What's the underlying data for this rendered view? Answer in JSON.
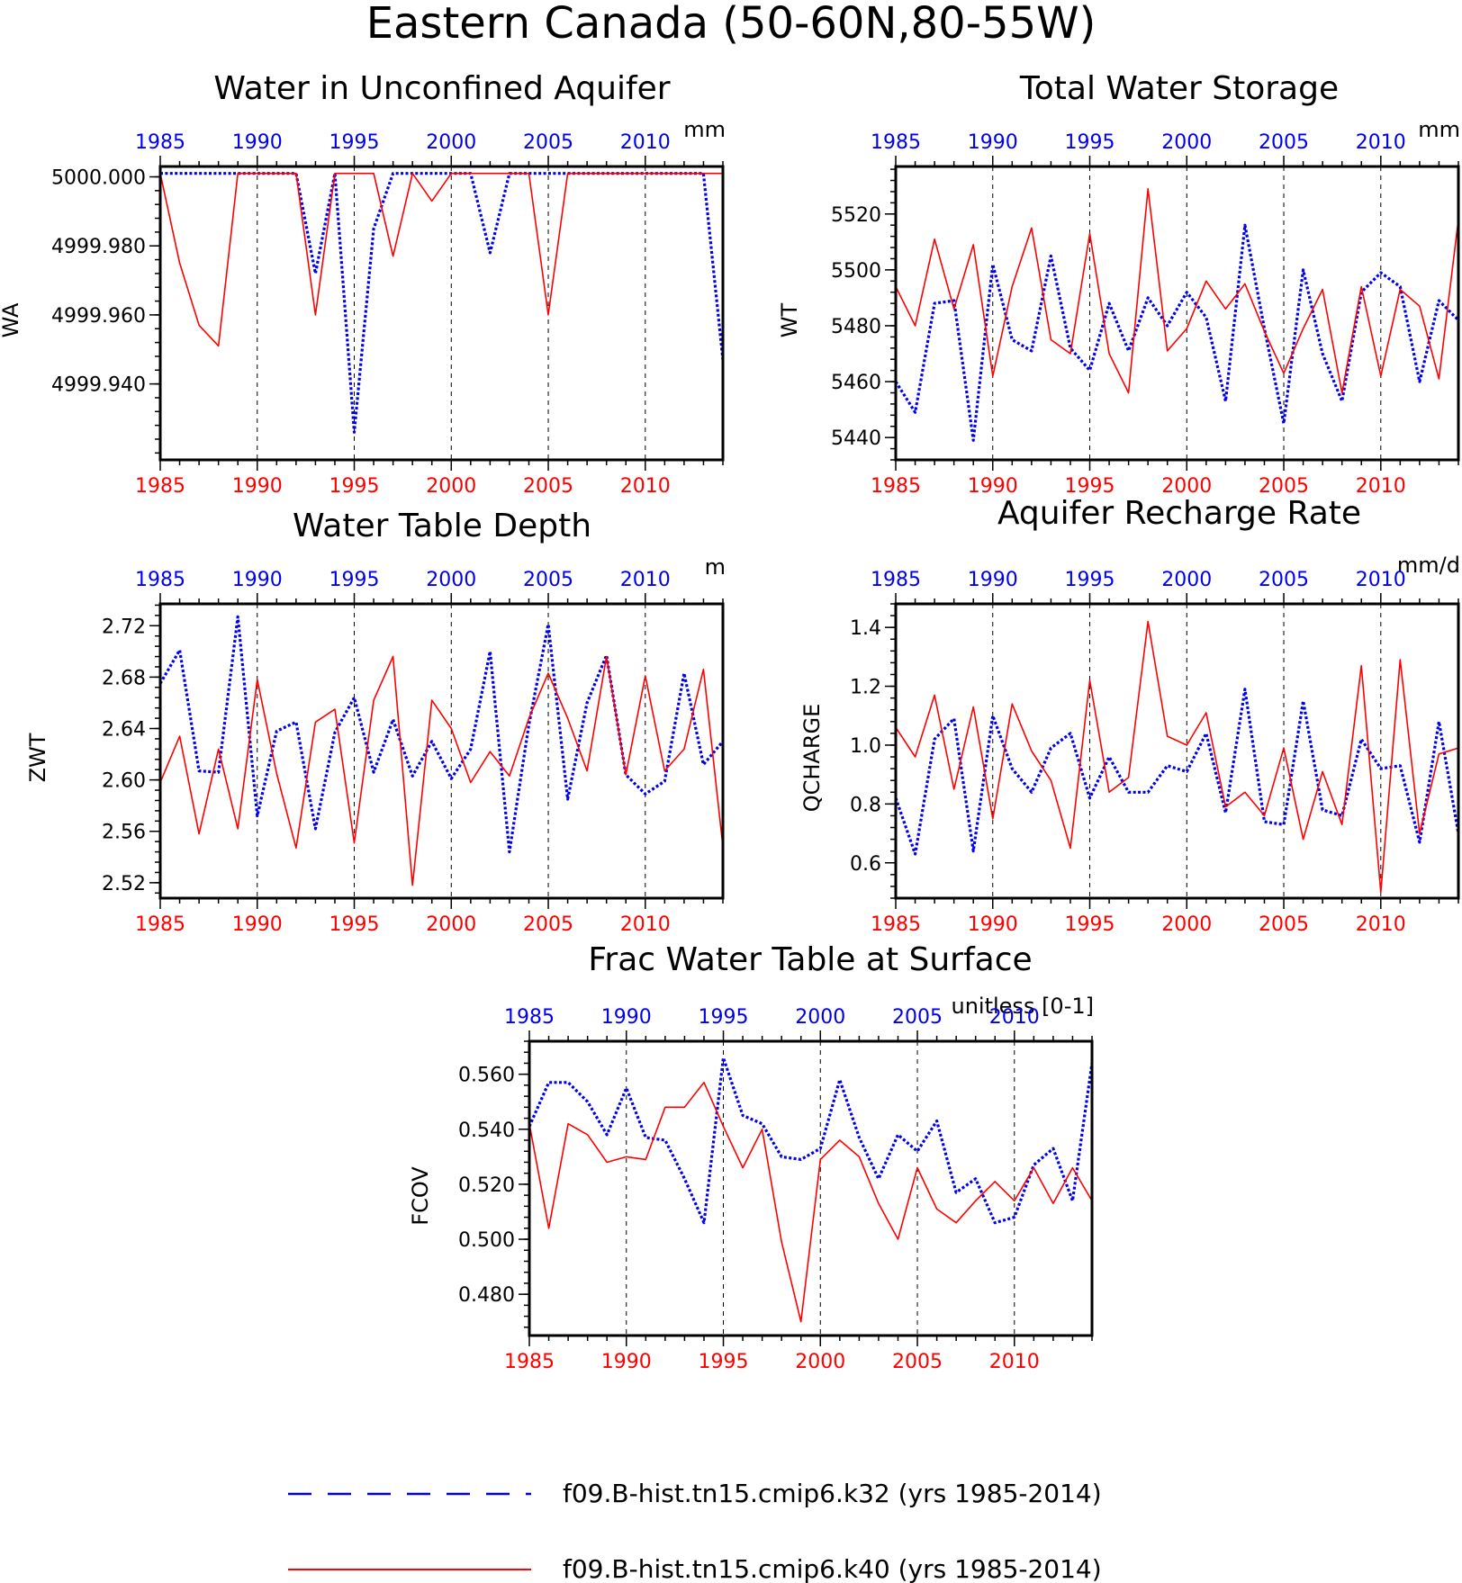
{
  "figure_title": "Eastern Canada (50-60N,80-55W)",
  "colors": {
    "red_series": "#ff0000",
    "blue_series": "#0000ee",
    "axis": "#000000",
    "grid": "#000000"
  },
  "legend": {
    "entries": [
      {
        "label": "f09.B-hist.tn15.cmip6.k32 (yrs 1985-2014)",
        "color": "#0000ee",
        "style": "dashed"
      },
      {
        "label": "f09.B-hist.tn15.cmip6.k40 (yrs 1985-2014)",
        "color": "#ff0000",
        "style": "solid"
      }
    ]
  },
  "chart_data": [
    {
      "type": "line",
      "title": "Water in Unconfined Aquifer",
      "units": "mm",
      "ylabel": "WA",
      "xlim": [
        1985,
        2014
      ],
      "ylim": [
        4999.918,
        5000.003
      ],
      "yticks": [
        4999.94,
        4999.96,
        4999.98,
        5000.0
      ],
      "ytick_labels": [
        "4999.940",
        "4999.960",
        "4999.980",
        "5000.000"
      ],
      "xticks": [
        1985,
        1990,
        1995,
        2000,
        2005,
        2010
      ],
      "vgrid": [
        1990,
        1995,
        2000,
        2005,
        2010
      ],
      "x": [
        1985,
        1986,
        1987,
        1988,
        1989,
        1990,
        1991,
        1992,
        1993,
        1994,
        1995,
        1996,
        1997,
        1998,
        1999,
        2000,
        2001,
        2002,
        2003,
        2004,
        2005,
        2006,
        2007,
        2008,
        2009,
        2010,
        2011,
        2012,
        2013,
        2014
      ],
      "series": [
        {
          "color": "blue",
          "style": "dotted",
          "values": [
            5000.001,
            5000.001,
            5000.001,
            5000.001,
            5000.001,
            5000.001,
            5000.001,
            5000.001,
            4999.972,
            5000.001,
            4999.926,
            4999.985,
            5000.001,
            5000.001,
            5000.001,
            5000.001,
            5000.001,
            4999.978,
            5000.001,
            5000.001,
            5000.001,
            5000.001,
            5000.001,
            5000.001,
            5000.001,
            5000.001,
            5000.001,
            5000.001,
            5000.001,
            4999.947
          ]
        },
        {
          "color": "red",
          "style": "solid",
          "values": [
            5000.001,
            4999.975,
            4999.957,
            4999.951,
            5000.001,
            5000.001,
            5000.001,
            5000.001,
            4999.96,
            5000.001,
            5000.001,
            5000.001,
            4999.977,
            5000.001,
            4999.993,
            5000.001,
            5000.001,
            5000.001,
            5000.001,
            5000.001,
            4999.96,
            5000.001,
            5000.001,
            5000.001,
            5000.001,
            5000.001,
            5000.001,
            5000.001,
            5000.001,
            5000.001
          ]
        }
      ]
    },
    {
      "type": "line",
      "title": "Total Water Storage",
      "units": "mm",
      "ylabel": "WT",
      "xlim": [
        1985,
        2014
      ],
      "ylim": [
        5432,
        5537
      ],
      "yticks": [
        5440,
        5460,
        5480,
        5500,
        5520
      ],
      "ytick_labels": [
        "5440",
        "5460",
        "5480",
        "5500",
        "5520"
      ],
      "xticks": [
        1985,
        1990,
        1995,
        2000,
        2005,
        2010
      ],
      "vgrid": [
        1990,
        1995,
        2000,
        2005,
        2010
      ],
      "x": [
        1985,
        1986,
        1987,
        1988,
        1989,
        1990,
        1991,
        1992,
        1993,
        1994,
        1995,
        1996,
        1997,
        1998,
        1999,
        2000,
        2001,
        2002,
        2003,
        2004,
        2005,
        2006,
        2007,
        2008,
        2009,
        2010,
        2011,
        2012,
        2013,
        2014
      ],
      "series": [
        {
          "color": "blue",
          "style": "dotted",
          "values": [
            5460,
            5449,
            5488,
            5489,
            5439,
            5502,
            5475,
            5471,
            5505,
            5472,
            5464,
            5488,
            5471,
            5490,
            5480,
            5492,
            5483,
            5453,
            5516,
            5479,
            5445,
            5500,
            5470,
            5453,
            5492,
            5499,
            5494,
            5460,
            5489,
            5482
          ]
        },
        {
          "color": "red",
          "style": "solid",
          "values": [
            5494,
            5480,
            5511,
            5486,
            5509,
            5462,
            5494,
            5515,
            5475,
            5470,
            5513,
            5470,
            5456,
            5529,
            5471,
            5479,
            5496,
            5486,
            5495,
            5478,
            5463,
            5479,
            5493,
            5456,
            5494,
            5462,
            5493,
            5487,
            5461,
            5518
          ]
        }
      ]
    },
    {
      "type": "line",
      "title": "Water Table Depth",
      "units": "m",
      "ylabel": "ZWT",
      "xlim": [
        1985,
        2014
      ],
      "ylim": [
        2.508,
        2.737
      ],
      "yticks": [
        2.52,
        2.56,
        2.6,
        2.64,
        2.68,
        2.72
      ],
      "ytick_labels": [
        "2.52",
        "2.56",
        "2.60",
        "2.64",
        "2.68",
        "2.72"
      ],
      "xticks": [
        1985,
        1990,
        1995,
        2000,
        2005,
        2010
      ],
      "vgrid": [
        1990,
        1995,
        2000,
        2005,
        2010
      ],
      "x": [
        1985,
        1986,
        1987,
        1988,
        1989,
        1990,
        1991,
        1992,
        1993,
        1994,
        1995,
        1996,
        1997,
        1998,
        1999,
        2000,
        2001,
        2002,
        2003,
        2004,
        2005,
        2006,
        2007,
        2008,
        2009,
        2010,
        2011,
        2012,
        2013,
        2014
      ],
      "series": [
        {
          "color": "blue",
          "style": "dotted",
          "values": [
            2.675,
            2.701,
            2.607,
            2.606,
            2.727,
            2.572,
            2.638,
            2.645,
            2.562,
            2.637,
            2.664,
            2.606,
            2.647,
            2.603,
            2.63,
            2.601,
            2.624,
            2.7,
            2.544,
            2.643,
            2.721,
            2.585,
            2.66,
            2.697,
            2.604,
            2.589,
            2.599,
            2.683,
            2.612,
            2.63
          ]
        },
        {
          "color": "red",
          "style": "solid",
          "values": [
            2.598,
            2.634,
            2.558,
            2.624,
            2.562,
            2.678,
            2.605,
            2.547,
            2.645,
            2.655,
            2.551,
            2.662,
            2.696,
            2.518,
            2.662,
            2.64,
            2.598,
            2.622,
            2.603,
            2.648,
            2.683,
            2.648,
            2.607,
            2.696,
            2.604,
            2.681,
            2.607,
            2.624,
            2.686,
            2.548
          ]
        }
      ]
    },
    {
      "type": "line",
      "title": "Aquifer Recharge Rate",
      "units": "mm/d",
      "ylabel": "QCHARGE",
      "xlim": [
        1985,
        2014
      ],
      "ylim": [
        0.48,
        1.48
      ],
      "yticks": [
        0.6,
        0.8,
        1.0,
        1.2,
        1.4
      ],
      "ytick_labels": [
        "0.6",
        "0.8",
        "1.0",
        "1.2",
        "1.4"
      ],
      "xticks": [
        1985,
        1990,
        1995,
        2000,
        2005,
        2010
      ],
      "vgrid": [
        1990,
        1995,
        2000,
        2005,
        2010
      ],
      "x": [
        1985,
        1986,
        1987,
        1988,
        1989,
        1990,
        1991,
        1992,
        1993,
        1994,
        1995,
        1996,
        1997,
        1998,
        1999,
        2000,
        2001,
        2002,
        2003,
        2004,
        2005,
        2006,
        2007,
        2008,
        2009,
        2010,
        2011,
        2012,
        2013,
        2014
      ],
      "series": [
        {
          "color": "blue",
          "style": "dotted",
          "values": [
            0.82,
            0.63,
            1.02,
            1.09,
            0.64,
            1.1,
            0.92,
            0.84,
            0.99,
            1.04,
            0.82,
            0.96,
            0.84,
            0.84,
            0.93,
            0.91,
            1.04,
            0.77,
            1.19,
            0.74,
            0.73,
            1.15,
            0.78,
            0.76,
            1.02,
            0.92,
            0.93,
            0.67,
            1.08,
            0.7
          ]
        },
        {
          "color": "red",
          "style": "solid",
          "values": [
            1.06,
            0.96,
            1.17,
            0.85,
            1.13,
            0.75,
            1.14,
            0.98,
            0.88,
            0.65,
            1.22,
            0.84,
            0.89,
            1.42,
            1.03,
            1.0,
            1.11,
            0.79,
            0.84,
            0.76,
            0.99,
            0.68,
            0.91,
            0.73,
            1.27,
            0.5,
            1.29,
            0.7,
            0.97,
            0.99
          ]
        }
      ]
    },
    {
      "type": "line",
      "title": "Frac Water Table at Surface",
      "units": "unitless [0-1]",
      "ylabel": "FCOV",
      "xlim": [
        1985,
        2014
      ],
      "ylim": [
        0.465,
        0.572
      ],
      "yticks": [
        0.48,
        0.5,
        0.52,
        0.54,
        0.56
      ],
      "ytick_labels": [
        "0.480",
        "0.500",
        "0.520",
        "0.540",
        "0.560"
      ],
      "xticks": [
        1985,
        1990,
        1995,
        2000,
        2005,
        2010
      ],
      "vgrid": [
        1990,
        1995,
        2000,
        2005,
        2010
      ],
      "x": [
        1985,
        1986,
        1987,
        1988,
        1989,
        1990,
        1991,
        1992,
        1993,
        1994,
        1995,
        1996,
        1997,
        1998,
        1999,
        2000,
        2001,
        2002,
        2003,
        2004,
        2005,
        2006,
        2007,
        2008,
        2009,
        2010,
        2011,
        2012,
        2013,
        2014
      ],
      "series": [
        {
          "color": "blue",
          "style": "dotted",
          "values": [
            0.541,
            0.557,
            0.557,
            0.55,
            0.538,
            0.555,
            0.537,
            0.536,
            0.522,
            0.506,
            0.566,
            0.545,
            0.542,
            0.53,
            0.529,
            0.533,
            0.558,
            0.537,
            0.522,
            0.538,
            0.532,
            0.543,
            0.517,
            0.522,
            0.506,
            0.508,
            0.527,
            0.533,
            0.514,
            0.564
          ]
        },
        {
          "color": "red",
          "style": "solid",
          "values": [
            0.542,
            0.504,
            0.542,
            0.538,
            0.528,
            0.53,
            0.529,
            0.548,
            0.548,
            0.557,
            0.541,
            0.526,
            0.54,
            0.499,
            0.47,
            0.529,
            0.536,
            0.53,
            0.513,
            0.5,
            0.526,
            0.511,
            0.506,
            0.514,
            0.521,
            0.514,
            0.526,
            0.513,
            0.526,
            0.514
          ]
        }
      ]
    }
  ]
}
